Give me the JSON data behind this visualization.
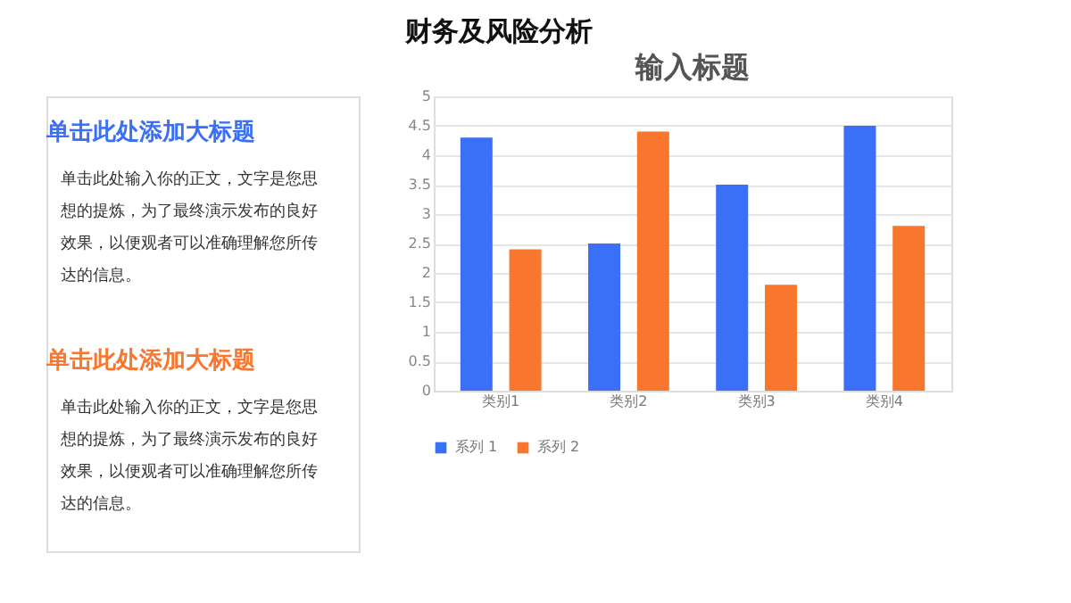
{
  "chart_data": {
    "type": "bar",
    "title": "输入标题",
    "categories": [
      "类别1",
      "类别2",
      "类别3",
      "类别4"
    ],
    "series": [
      {
        "name": "系列 1",
        "color": "#3a6ff7",
        "values": [
          4.3,
          2.5,
          3.5,
          4.5
        ]
      },
      {
        "name": "系列 2",
        "color": "#f9762e",
        "values": [
          2.4,
          4.4,
          1.8,
          2.8
        ]
      }
    ],
    "ylim": [
      0,
      5
    ],
    "yticks": [
      0,
      0.5,
      1,
      1.5,
      2,
      2.5,
      3,
      3.5,
      4,
      4.5,
      5
    ],
    "grid": "y",
    "legend": "bottom",
    "annotations": [
      "财务及风险分析",
      "单击此处添加大标题",
      "单击此处输入你的正文，文字是您思想的提炼，为了最终演示发布的良好效果，以便观者可以准确理解您所传达的信息。",
      "单击此处添加大标题",
      "单击此处输入你的正文，文字是您思想的提炼，为了最终演示发布的良好效果，以便观者可以准确理解您所传达的信息。"
    ]
  }
}
